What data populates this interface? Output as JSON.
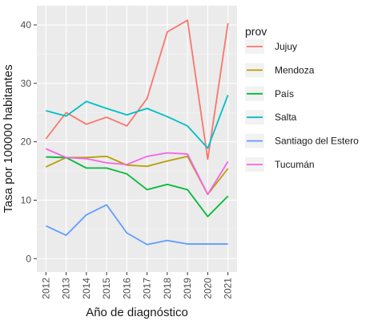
{
  "chart_data": {
    "type": "line",
    "xlabel": "Año de diagnóstico",
    "ylabel": "Tasa por 100000 habitantes",
    "x": [
      2012,
      2013,
      2014,
      2015,
      2016,
      2017,
      2018,
      2019,
      2020,
      2021
    ],
    "yticks": [
      0,
      10,
      20,
      30,
      40
    ],
    "ylim": [
      -2.3,
      43.3
    ],
    "grid": true,
    "legend": {
      "title": "prov",
      "position": "right"
    },
    "series": [
      {
        "name": "Jujuy",
        "color": "#F8766D",
        "values": [
          20.5,
          25.0,
          23.0,
          24.2,
          22.7,
          27.4,
          38.8,
          40.8,
          17.0,
          40.3
        ]
      },
      {
        "name": "Mendoza",
        "color": "#B79F00",
        "values": [
          15.7,
          17.3,
          17.3,
          17.5,
          16.0,
          15.8,
          16.7,
          17.5,
          11.0,
          15.4
        ]
      },
      {
        "name": "País",
        "color": "#00BA38",
        "values": [
          17.4,
          17.3,
          15.5,
          15.5,
          14.5,
          11.8,
          12.7,
          11.8,
          7.2,
          10.7
        ]
      },
      {
        "name": "Salta",
        "color": "#00BFC4",
        "values": [
          25.3,
          24.4,
          26.9,
          25.7,
          24.6,
          25.7,
          24.3,
          22.7,
          18.9,
          28.0
        ]
      },
      {
        "name": "Santiago del Estero",
        "color": "#619CFF",
        "values": [
          5.6,
          4.0,
          7.5,
          9.2,
          4.4,
          2.4,
          3.1,
          2.5,
          2.5,
          2.5
        ]
      },
      {
        "name": "Tucumán",
        "color": "#F564E3",
        "values": [
          18.8,
          17.3,
          17.1,
          16.4,
          16.1,
          17.5,
          18.1,
          17.9,
          11.0,
          16.6
        ]
      }
    ]
  }
}
